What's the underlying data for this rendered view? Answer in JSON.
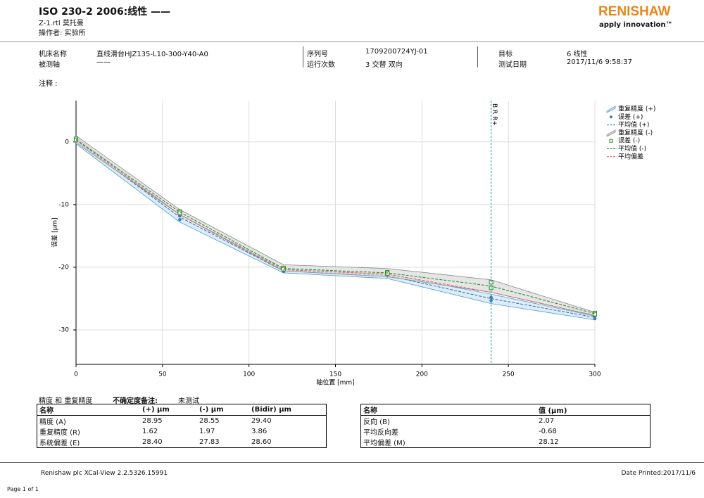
{
  "header": {
    "title": "ISO 230-2 2006:线性 ——",
    "file": "Z-1.rtl 莫托曼",
    "operator": "操作者: 实验所",
    "logo": "RENISHAW",
    "slogan": "apply innovation™"
  },
  "info": {
    "machine_label": "机床名称",
    "machine": "直线滑台HJZ135-L10-300-Y40-A0",
    "axis_label": "被测轴",
    "axis": "——",
    "serial_label": "序列号",
    "serial": "1709200724YJ-01",
    "runs_label": "运行次数",
    "runs": "3 交替 双向",
    "target_label": "目标",
    "target": "6 线性",
    "date_label": "测试日期",
    "date": "2017/11/6 9:58:37"
  },
  "comment_label": "注释 :",
  "chart_data": {
    "type": "line",
    "x_label": "轴位置 [mm]",
    "y_label": "误差 [µm]",
    "x": [
      0,
      60,
      120,
      180,
      240,
      300
    ],
    "xlim": [
      0,
      300
    ],
    "xticks": [
      0,
      50,
      100,
      150,
      200,
      250,
      300
    ],
    "ylim": [
      -35.5,
      6.6
    ],
    "yticks": [
      0,
      -10,
      -20,
      -30
    ],
    "grid": true,
    "markers": [
      {
        "x": 240,
        "label": "B R R+"
      }
    ],
    "series": [
      {
        "name": "重复精度 (+)",
        "style": "band",
        "color": "#4a9fd0",
        "fill": "#d3e6f2",
        "high": [
          0.7,
          -11.6,
          -20.3,
          -21.1,
          -24.3,
          -27.8
        ],
        "low": [
          -0.3,
          -12.8,
          -20.9,
          -21.8,
          -25.8,
          -28.4
        ]
      },
      {
        "name": "误差 (+)",
        "style": "points",
        "marker": "circle",
        "color": "#3a7fc0",
        "values": [
          [
            0.1,
            -12.4,
            -20.7,
            -21.4,
            -25.3,
            -28.2
          ],
          [
            0.3,
            -11.8,
            -20.5,
            -21.2,
            -24.8,
            -27.9
          ]
        ]
      },
      {
        "name": "平均值 (+)",
        "style": "line",
        "color": "#2a6db0",
        "values": [
          0.2,
          -12.0,
          -20.6,
          -21.3,
          -25.0,
          -28.0
        ]
      },
      {
        "name": "重复精度 (-)",
        "style": "band",
        "color": "#888888",
        "fill": "#dcdcdc",
        "high": [
          1.0,
          -10.8,
          -19.6,
          -20.2,
          -22.0,
          -27.2
        ],
        "low": [
          -0.1,
          -11.6,
          -20.6,
          -21.5,
          -24.0,
          -27.7
        ]
      },
      {
        "name": "误差 (-)",
        "style": "points",
        "marker": "square",
        "color": "#1f8a1f",
        "values": [
          [
            0.5,
            -11.1,
            -20.1,
            -20.8,
            -22.4,
            -27.3
          ],
          [
            0.3,
            -11.3,
            -20.3,
            -21.0,
            -23.3,
            -27.5
          ]
        ]
      },
      {
        "name": "平均值 (-)",
        "style": "line",
        "color": "#1f8a1f",
        "values": [
          0.4,
          -11.2,
          -20.2,
          -20.9,
          -23.0,
          -27.4
        ]
      },
      {
        "name": "平均偏差",
        "style": "line",
        "color": "#e06060",
        "values": [
          0.3,
          -11.6,
          -20.4,
          -21.1,
          -24.0,
          -27.7
        ]
      }
    ]
  },
  "results": {
    "section": "精度 和 重复精度",
    "uncertainty_label": "不确定度备注:",
    "uncertainty": "未测试",
    "table_left": {
      "header": [
        "名称",
        "(+) µm",
        "(-) µm",
        "(Bidir) µm"
      ],
      "rows": [
        [
          "精度 (A)",
          "28.95",
          "28.55",
          "29.40"
        ],
        [
          "重复精度 (R)",
          "1.62",
          "1.97",
          "3.86"
        ],
        [
          "系统偏差 (E)",
          "28.40",
          "27.83",
          "28.60"
        ]
      ]
    },
    "table_right": {
      "header": [
        "名称",
        "值 (µm)"
      ],
      "rows": [
        [
          "反向 (B)",
          "2.07"
        ],
        [
          "平均反向差",
          "-0.68"
        ],
        [
          "平均偏差 (M)",
          "28.12"
        ]
      ]
    }
  },
  "footer": {
    "software": "Renishaw plc XCal-View 2.2.5326.15991",
    "printed": "Date Printed:2017/11/6",
    "page": "Page 1 of 1"
  }
}
